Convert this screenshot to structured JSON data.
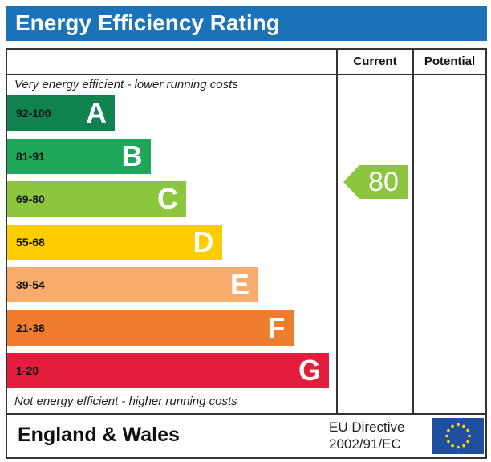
{
  "header": {
    "title": "Energy Efficiency Rating"
  },
  "columns": {
    "current": "Current",
    "potential": "Potential"
  },
  "notes": {
    "top": "Very energy efficient - lower running costs",
    "bottom": "Not energy efficient - higher running costs"
  },
  "bands": [
    {
      "range": "92-100",
      "letter": "A",
      "color": "#0f8250"
    },
    {
      "range": "81-91",
      "letter": "B",
      "color": "#1ca75a"
    },
    {
      "range": "69-80",
      "letter": "C",
      "color": "#8cc63e"
    },
    {
      "range": "55-68",
      "letter": "D",
      "color": "#ffcc00"
    },
    {
      "range": "39-54",
      "letter": "E",
      "color": "#f7ab6c"
    },
    {
      "range": "21-38",
      "letter": "F",
      "color": "#ef7d2d"
    },
    {
      "range": "1-20",
      "letter": "G",
      "color": "#e31d3c"
    }
  ],
  "current_rating": {
    "value": "80",
    "color": "#8cc63e"
  },
  "footer": {
    "region": "England & Wales",
    "directive_line1": "EU Directive",
    "directive_line2": "2002/91/EC"
  },
  "colors": {
    "header": "#1a73b8",
    "eu_flag": "#1f4f9e",
    "eu_stars": "#ffdd00"
  }
}
